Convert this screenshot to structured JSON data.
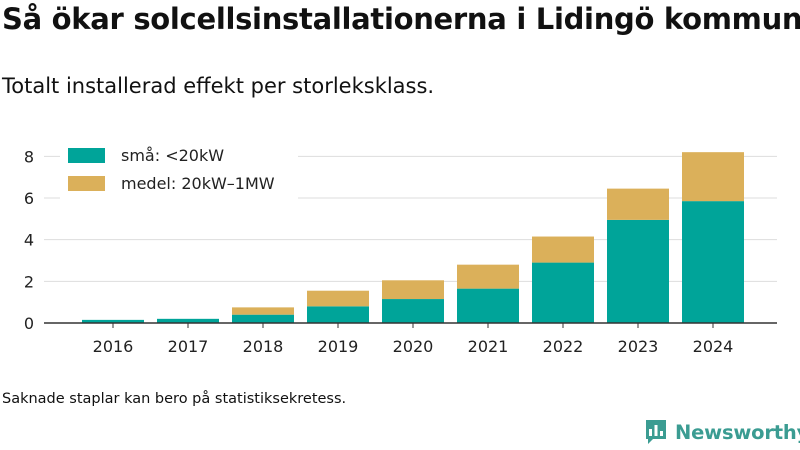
{
  "title": "Så ökar solcellsinstallationerna i Lidingö kommun",
  "subtitle": "Totalt installerad effekt per storleksklass.",
  "footnote": "Saknade staplar kan bero på statistiksekretess.",
  "brand": {
    "name": "Newsworthy",
    "logo_icon": "bar-chart-speech-bubble-icon"
  },
  "colors": {
    "small": "#00a499",
    "medium": "#dbb05a",
    "grid": "#dddddd",
    "axis": "#333333",
    "brand": "#3b9c92"
  },
  "chart_data": {
    "type": "bar",
    "stacked": true,
    "categories": [
      "2016",
      "2017",
      "2018",
      "2019",
      "2020",
      "2021",
      "2022",
      "2023",
      "2024"
    ],
    "series": [
      {
        "name": "små: <20kW",
        "color": "#00a499",
        "values": [
          0.15,
          0.2,
          0.4,
          0.8,
          1.15,
          1.65,
          2.9,
          4.95,
          5.85
        ]
      },
      {
        "name": "medel: 20kW–1MW",
        "color": "#dbb05a",
        "values": [
          0.0,
          0.0,
          0.35,
          0.75,
          0.9,
          1.15,
          1.25,
          1.5,
          2.35
        ]
      }
    ],
    "yticks": [
      0,
      2,
      4,
      6,
      8
    ],
    "ylim": [
      0,
      8.4
    ],
    "xlabel": "",
    "ylabel": "",
    "grid": true,
    "legend_position": "top-left"
  }
}
